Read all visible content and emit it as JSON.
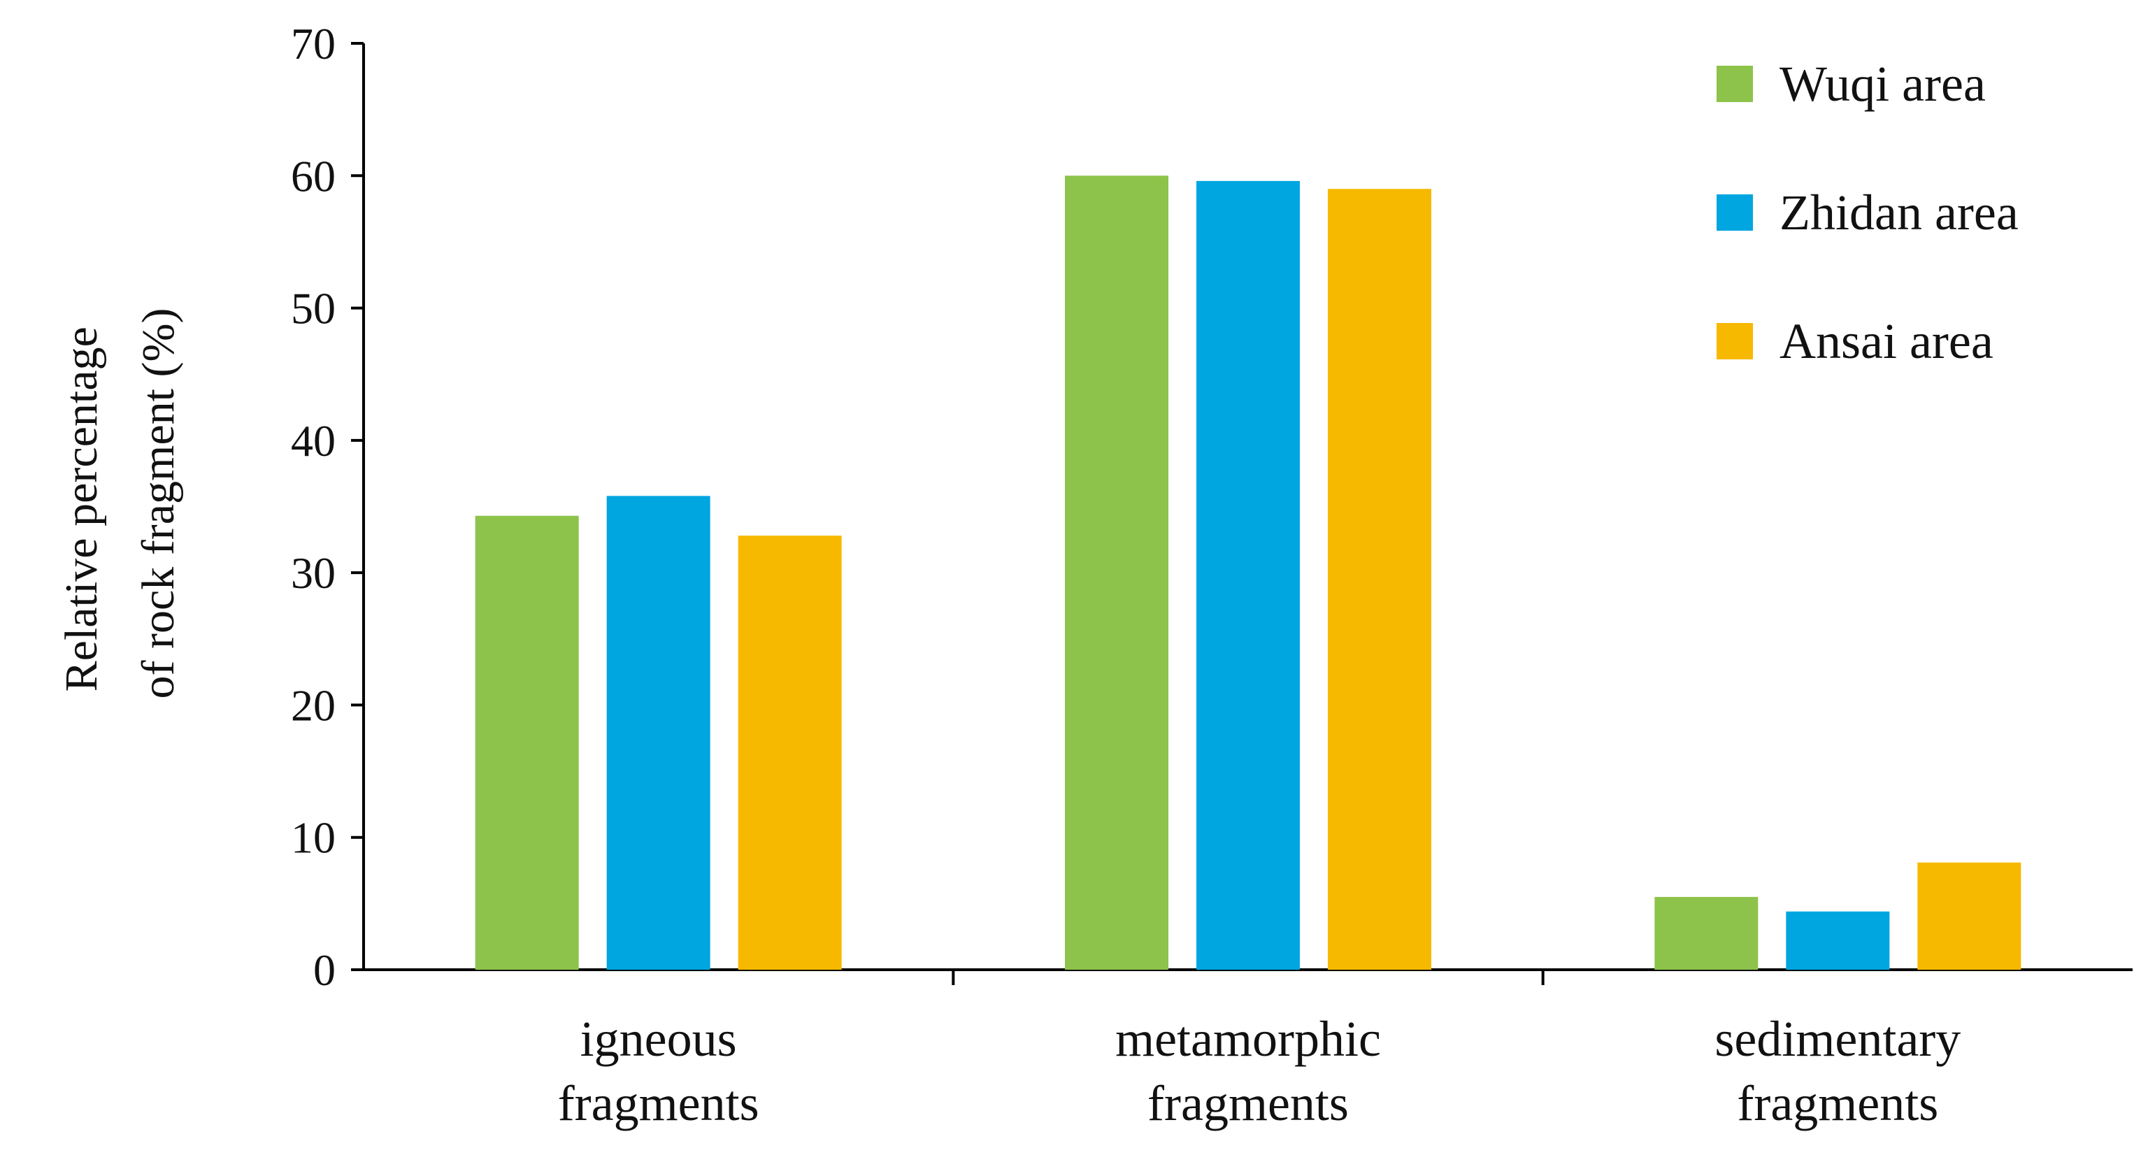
{
  "chart_data": {
    "type": "bar",
    "title": "",
    "ylabel_lines": [
      "Relative percentage",
      "of rock fragment (%)"
    ],
    "xlabel": "",
    "ylim": [
      0,
      70
    ],
    "yticks": [
      0,
      10,
      20,
      30,
      40,
      50,
      60,
      70
    ],
    "grid": false,
    "legend_position": "top-right",
    "categories": [
      {
        "lines": [
          "igneous",
          "fragments"
        ]
      },
      {
        "lines": [
          "metamorphic",
          "fragments"
        ]
      },
      {
        "lines": [
          "sedimentary",
          "fragments"
        ]
      }
    ],
    "series": [
      {
        "name": "Wuqi area",
        "color": "#8dc34a",
        "values": [
          34.3,
          60.0,
          5.5
        ]
      },
      {
        "name": "Zhidan area",
        "color": "#00a6e0",
        "values": [
          35.8,
          59.6,
          4.4
        ]
      },
      {
        "name": "Ansai area",
        "color": "#f7b800",
        "values": [
          32.8,
          59.0,
          8.1
        ]
      }
    ]
  }
}
